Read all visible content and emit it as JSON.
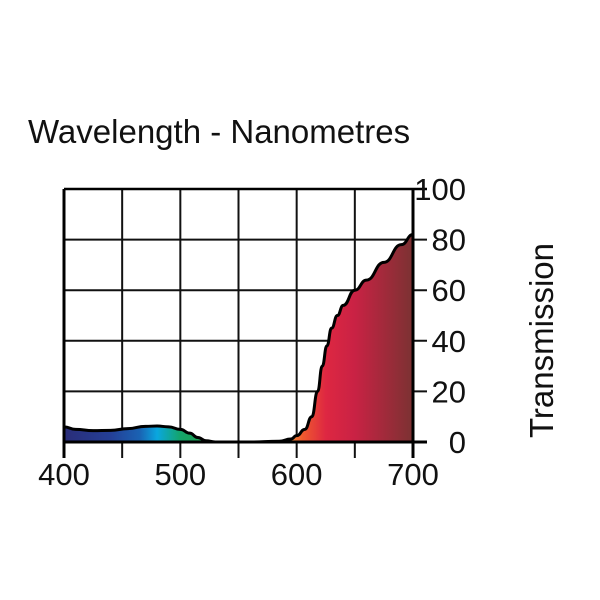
{
  "chart_data": {
    "type": "area",
    "title": "Wavelength - Nanometres",
    "xlabel": "Wavelength - Nanometres",
    "ylabel": "Transmission",
    "xlim": [
      400,
      700
    ],
    "ylim": [
      0,
      100
    ],
    "xticks": [
      400,
      500,
      600,
      700
    ],
    "yticks": [
      0,
      20,
      40,
      60,
      80,
      100
    ],
    "xgrid_step": 50,
    "ygrid_step": 20,
    "grid": true,
    "series": [
      {
        "name": "Transmission",
        "x": [
          400,
          410,
          425,
          440,
          455,
          470,
          480,
          490,
          500,
          508,
          515,
          522,
          530,
          560,
          585,
          595,
          600,
          607,
          613,
          618,
          622,
          626,
          630,
          635,
          640,
          650,
          660,
          675,
          690,
          700
        ],
        "y": [
          6,
          5,
          4.5,
          4.6,
          5.3,
          6.2,
          6.3,
          6,
          5,
          3.5,
          1.8,
          0.5,
          0,
          0,
          0.3,
          1.2,
          2.5,
          5,
          10,
          20,
          30,
          38,
          45,
          50,
          54,
          60,
          64,
          71,
          78,
          82
        ]
      }
    ],
    "gradient_stops": [
      {
        "nm": 400,
        "color": "#2a2d78"
      },
      {
        "nm": 440,
        "color": "#243f96"
      },
      {
        "nm": 465,
        "color": "#1a62b3"
      },
      {
        "nm": 480,
        "color": "#0aa7df"
      },
      {
        "nm": 500,
        "color": "#14a56a"
      },
      {
        "nm": 520,
        "color": "#1fa050"
      },
      {
        "nm": 590,
        "color": "#f5a03a"
      },
      {
        "nm": 605,
        "color": "#ef5a2e"
      },
      {
        "nm": 625,
        "color": "#de2742"
      },
      {
        "nm": 650,
        "color": "#c92244"
      },
      {
        "nm": 700,
        "color": "#7b3232"
      }
    ]
  }
}
